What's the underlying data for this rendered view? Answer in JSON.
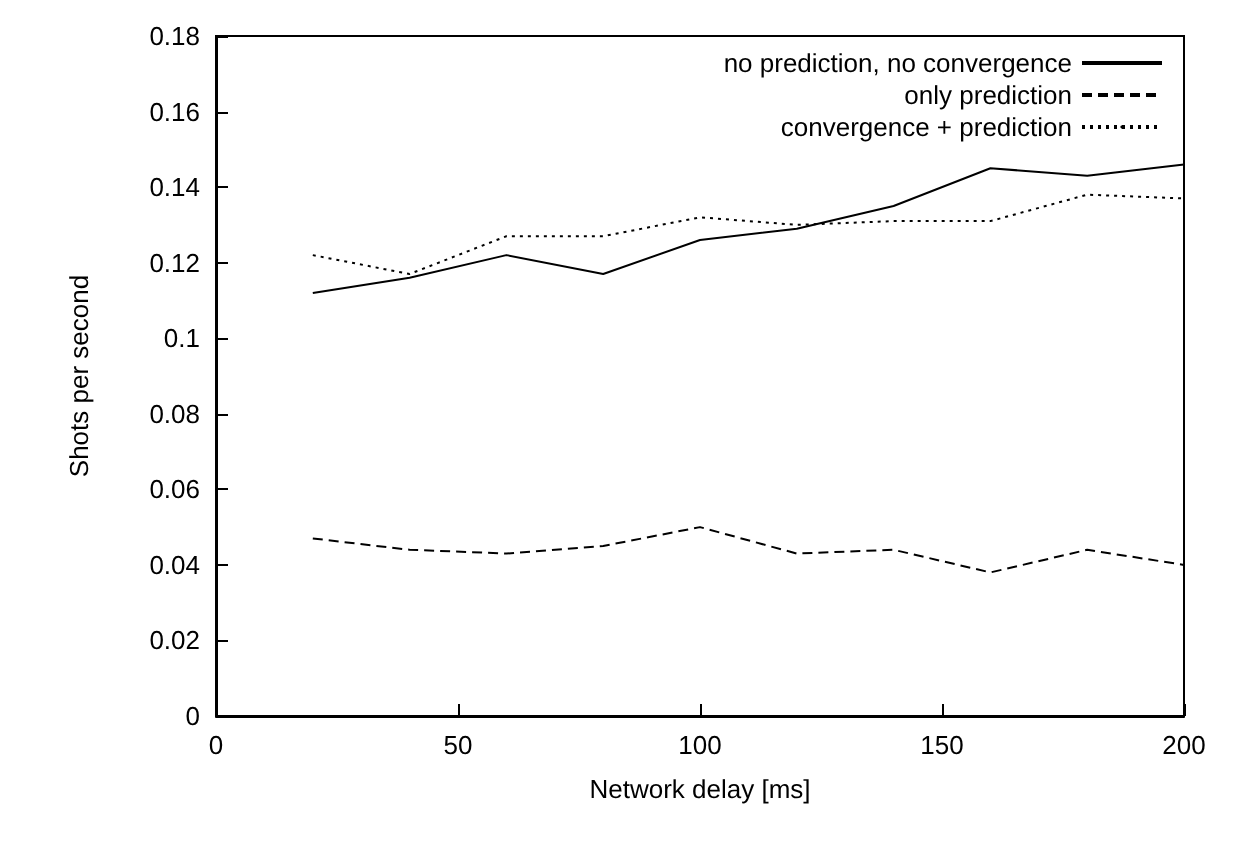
{
  "chart_data": {
    "type": "line",
    "xlabel": "Network delay [ms]",
    "ylabel": "Shots per second",
    "x": [
      20,
      40,
      60,
      80,
      100,
      120,
      140,
      160,
      180,
      200
    ],
    "xlim": [
      0,
      200
    ],
    "xticks": [
      0,
      50,
      100,
      150,
      200
    ],
    "ylim": [
      0,
      0.18
    ],
    "yticks": [
      0,
      0.02,
      0.04,
      0.06,
      0.08,
      0.1,
      0.12,
      0.14,
      0.16,
      0.18
    ],
    "legend": "top right",
    "grid": false,
    "marker": "none",
    "series": [
      {
        "name": "no prediction, no convergence",
        "color": "#000000",
        "line_style": "solid",
        "values": [
          0.112,
          0.116,
          0.122,
          0.117,
          0.126,
          0.129,
          0.135,
          0.145,
          0.143,
          0.146
        ]
      },
      {
        "name": "only prediction",
        "color": "#000000",
        "line_style": "dashed",
        "values": [
          0.047,
          0.044,
          0.043,
          0.045,
          0.05,
          0.043,
          0.044,
          0.038,
          0.044,
          0.04
        ]
      },
      {
        "name": "convergence + prediction",
        "color": "#000000",
        "line_style": "dotted",
        "values": [
          0.122,
          0.117,
          0.127,
          0.127,
          0.132,
          0.13,
          0.131,
          0.131,
          0.138,
          0.137
        ]
      }
    ]
  }
}
